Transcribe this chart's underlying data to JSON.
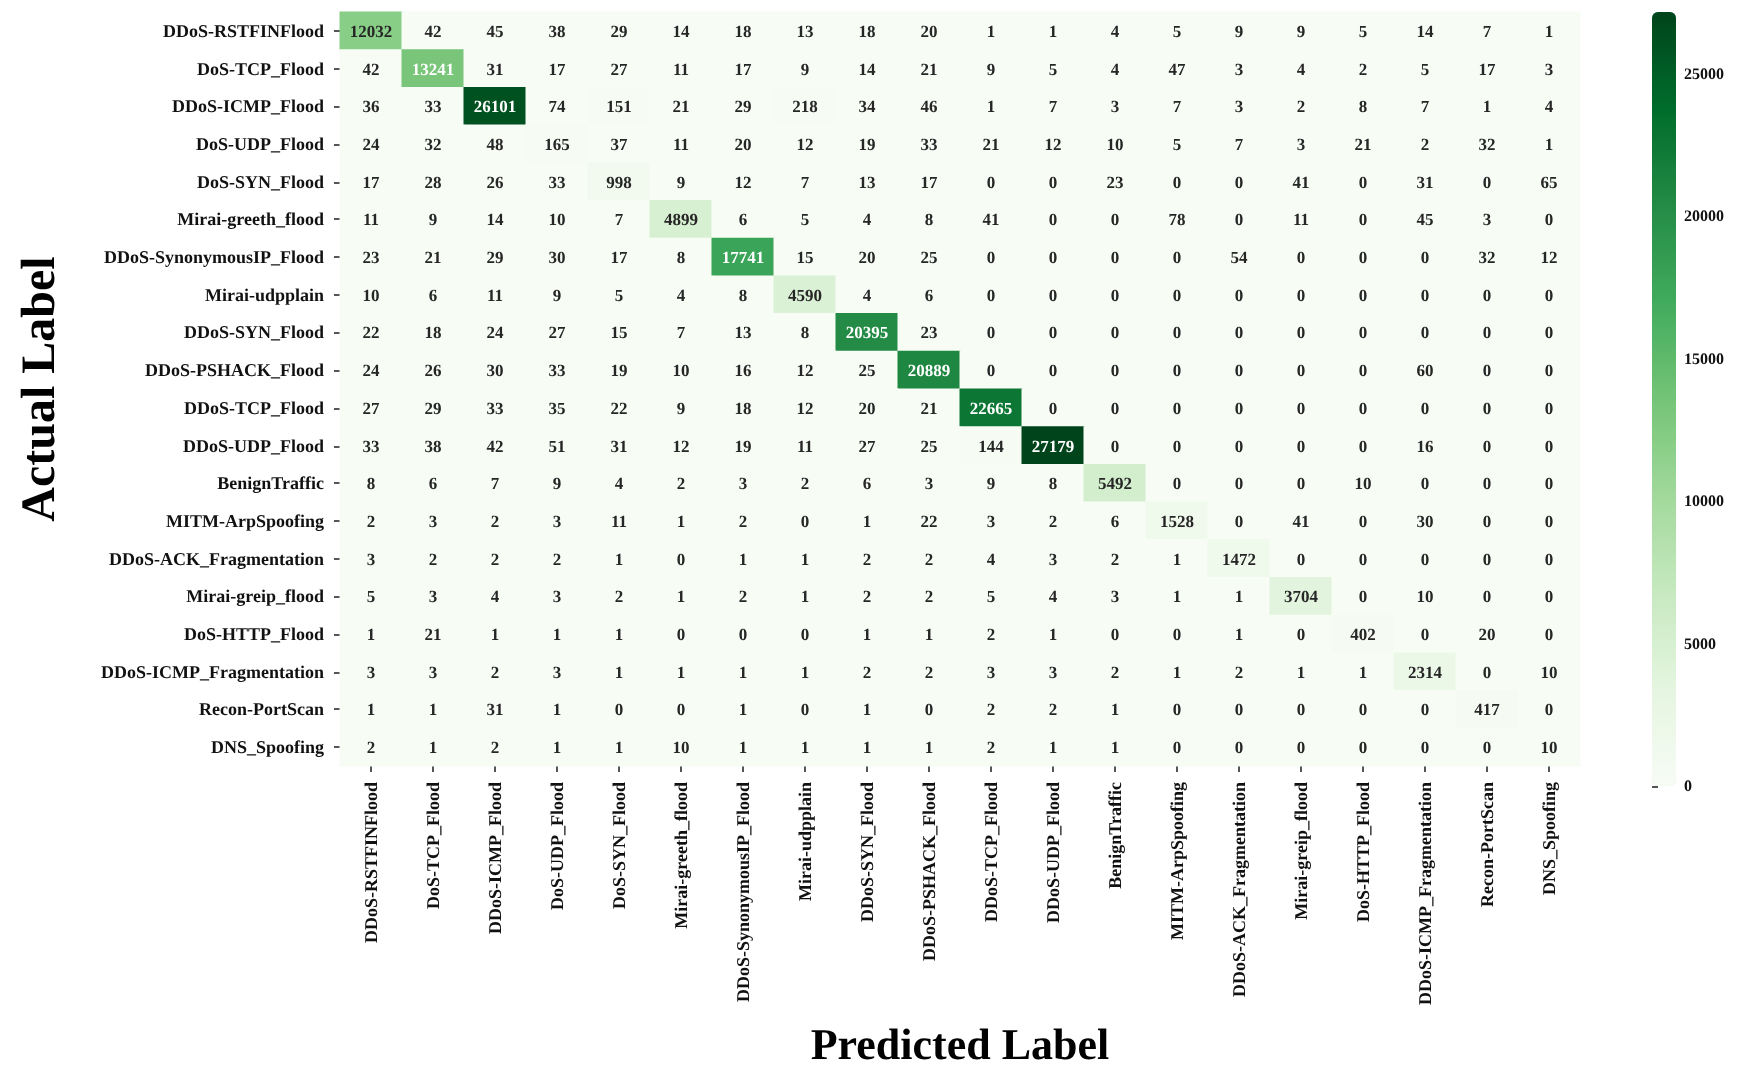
{
  "chart_data": {
    "type": "heatmap",
    "xlabel": "Predicted Label",
    "ylabel": "Actual Label",
    "categories": [
      "DDoS-RSTFINFlood",
      "DoS-TCP_Flood",
      "DDoS-ICMP_Flood",
      "DoS-UDP_Flood",
      "DoS-SYN_Flood",
      "Mirai-greeth_flood",
      "DDoS-SynonymousIP_Flood",
      "Mirai-udpplain",
      "DDoS-SYN_Flood",
      "DDoS-PSHACK_Flood",
      "DDoS-TCP_Flood",
      "DDoS-UDP_Flood",
      "BenignTraffic",
      "MITM-ArpSpoofing",
      "DDoS-ACK_Fragmentation",
      "Mirai-greip_flood",
      "DoS-HTTP_Flood",
      "DDoS-ICMP_Fragmentation",
      "Recon-PortScan",
      "DNS_Spoofing"
    ],
    "y_categories": [
      "DDoS-RSTFINFlood",
      "DoS-TCP_Flood",
      "DDoS-ICMP_Flood",
      "DoS-UDP_Flood",
      "DoS-SYN_Flood",
      "Mirai-greeth_flood",
      "DDoS-SynonymousIP_Flood",
      "Mirai-udpplain",
      "DDoS-SYN_Flood",
      "DDoS-PSHACK_Flood",
      "DDoS-TCP_Flood",
      "DDoS-UDP_Flood",
      "BenignTraffic",
      "MITM-ArpSpoofing",
      "DDoS-ACK_Fragmentation",
      "Mirai-greip_flood",
      "DoS-HTTP_Flood",
      "DDoS-ICMP_Fragmentation",
      "Recon-PortScan",
      "DNS_Spoofing"
    ],
    "cells": [
      [
        12032,
        42,
        45,
        38,
        29,
        14,
        18,
        13,
        18,
        20,
        1,
        1,
        4,
        5,
        9,
        9,
        5,
        14,
        7,
        1
      ],
      [
        42,
        13241,
        31,
        17,
        27,
        11,
        17,
        9,
        14,
        21,
        9,
        5,
        4,
        47,
        3,
        4,
        2,
        5,
        17,
        3
      ],
      [
        36,
        33,
        26101,
        74,
        151,
        21,
        29,
        218,
        34,
        46,
        1,
        7,
        3,
        7,
        3,
        2,
        8,
        7,
        1,
        4
      ],
      [
        24,
        32,
        48,
        165,
        37,
        11,
        20,
        12,
        19,
        33,
        21,
        12,
        10,
        5,
        7,
        3,
        21,
        2,
        32,
        1
      ],
      [
        17,
        28,
        26,
        33,
        998,
        9,
        12,
        7,
        13,
        17,
        0,
        0,
        23,
        0,
        0,
        41,
        0,
        31,
        0,
        65
      ],
      [
        11,
        9,
        14,
        10,
        7,
        4899,
        6,
        5,
        4,
        8,
        41,
        0,
        0,
        78,
        0,
        11,
        0,
        45,
        3,
        0
      ],
      [
        23,
        21,
        29,
        30,
        17,
        8,
        17741,
        15,
        20,
        25,
        0,
        0,
        0,
        0,
        54,
        0,
        0,
        0,
        32,
        12
      ],
      [
        10,
        6,
        11,
        9,
        5,
        4,
        8,
        4590,
        4,
        6,
        0,
        0,
        0,
        0,
        0,
        0,
        0,
        0,
        0,
        0
      ],
      [
        22,
        18,
        24,
        27,
        15,
        7,
        13,
        8,
        20395,
        23,
        0,
        0,
        0,
        0,
        0,
        0,
        0,
        0,
        0,
        0
      ],
      [
        24,
        26,
        30,
        33,
        19,
        10,
        16,
        12,
        25,
        20889,
        0,
        0,
        0,
        0,
        0,
        0,
        0,
        60,
        0,
        0
      ],
      [
        27,
        29,
        33,
        35,
        22,
        9,
        18,
        12,
        20,
        21,
        22665,
        0,
        0,
        0,
        0,
        0,
        0,
        0,
        0,
        0
      ],
      [
        33,
        38,
        42,
        51,
        31,
        12,
        19,
        11,
        27,
        25,
        144,
        27179,
        0,
        0,
        0,
        0,
        0,
        16,
        0,
        0
      ],
      [
        8,
        6,
        7,
        9,
        4,
        2,
        3,
        2,
        6,
        3,
        9,
        8,
        5492,
        0,
        0,
        0,
        10,
        0,
        0,
        0
      ],
      [
        2,
        3,
        2,
        3,
        11,
        1,
        2,
        0,
        1,
        22,
        3,
        2,
        6,
        1528,
        0,
        41,
        0,
        30,
        0,
        0
      ],
      [
        3,
        2,
        2,
        2,
        1,
        0,
        1,
        1,
        2,
        2,
        4,
        3,
        2,
        1,
        1472,
        0,
        0,
        0,
        0,
        0
      ],
      [
        5,
        3,
        4,
        3,
        2,
        1,
        2,
        1,
        2,
        2,
        5,
        4,
        3,
        1,
        1,
        3704,
        0,
        10,
        0,
        0
      ],
      [
        1,
        21,
        1,
        1,
        1,
        0,
        0,
        0,
        1,
        1,
        2,
        1,
        0,
        0,
        1,
        0,
        402,
        0,
        20,
        0
      ],
      [
        3,
        3,
        2,
        3,
        1,
        1,
        1,
        1,
        2,
        2,
        3,
        3,
        2,
        1,
        2,
        1,
        1,
        2314,
        0,
        10
      ],
      [
        1,
        1,
        31,
        1,
        0,
        0,
        1,
        0,
        1,
        0,
        2,
        2,
        1,
        0,
        0,
        0,
        0,
        0,
        417,
        0
      ],
      [
        2,
        1,
        2,
        1,
        1,
        10,
        1,
        1,
        1,
        1,
        2,
        1,
        1,
        0,
        0,
        0,
        0,
        0,
        0,
        10
      ]
    ],
    "data_labels": true,
    "clim": [
      0,
      27179
    ],
    "cticks": [
      0,
      5000,
      10000,
      15000,
      20000,
      25000
    ]
  }
}
